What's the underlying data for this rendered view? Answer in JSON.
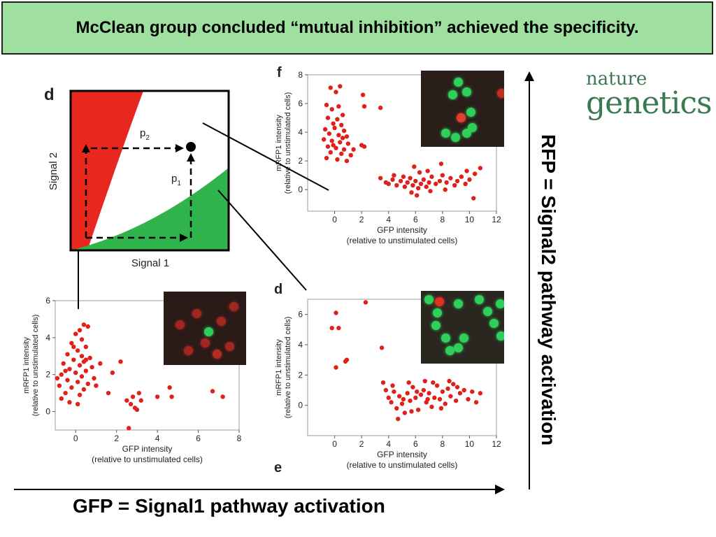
{
  "banner": {
    "title": "McClean group concluded “mutual inhibition” achieved the specificity."
  },
  "logo": {
    "line1": "nature",
    "line2": "genetics"
  },
  "axis_labels": {
    "bottom": "GFP = Signal1 pathway activation",
    "right": "RFP = Signal2 pathway activation"
  },
  "colors": {
    "banner": "#9fdf9f",
    "red_region": "#e8271e",
    "green_region": "#2fb34a",
    "dot": "#e0201a",
    "logo": "#3a7a52"
  },
  "schematic": {
    "panel_letter": "d",
    "xlabel": "Signal 1",
    "ylabel": "Signal 2",
    "p1_label": "p",
    "p1_sub": "1",
    "p2_label": "p",
    "p2_sub": "2"
  },
  "chart_data": [
    {
      "id": "top-right",
      "type": "scatter",
      "panel_letters": [
        "f"
      ],
      "xlabel": "GFP intensity",
      "xlabel2": "(relative to unstimulated cells)",
      "ylabel": "mRFP1 intensity",
      "ylabel2": "(relative to unstimulated cells)",
      "xlim": [
        -2,
        12
      ],
      "ylim": [
        -1.5,
        8
      ],
      "xticks": [
        0,
        2,
        4,
        6,
        8,
        10,
        12
      ],
      "yticks": [
        0,
        2,
        4,
        6,
        8
      ],
      "points": [
        [
          -0.3,
          7.1
        ],
        [
          0.1,
          6.8
        ],
        [
          0.4,
          7.2
        ],
        [
          -0.6,
          5.9
        ],
        [
          -0.2,
          5.6
        ],
        [
          0.3,
          5.8
        ],
        [
          0.6,
          5.2
        ],
        [
          -0.5,
          5.0
        ],
        [
          0.2,
          4.9
        ],
        [
          -0.1,
          4.6
        ],
        [
          0.5,
          4.5
        ],
        [
          -0.7,
          4.2
        ],
        [
          0.0,
          4.3
        ],
        [
          0.7,
          4.1
        ],
        [
          -0.4,
          3.9
        ],
        [
          0.3,
          3.8
        ],
        [
          0.9,
          3.7
        ],
        [
          -0.8,
          3.5
        ],
        [
          -0.2,
          3.4
        ],
        [
          0.4,
          3.3
        ],
        [
          1.0,
          3.2
        ],
        [
          -0.5,
          3.0
        ],
        [
          0.1,
          2.9
        ],
        [
          0.7,
          2.8
        ],
        [
          -0.3,
          2.6
        ],
        [
          0.5,
          2.5
        ],
        [
          1.2,
          2.4
        ],
        [
          -0.6,
          2.2
        ],
        [
          0.2,
          2.1
        ],
        [
          0.9,
          2.0
        ],
        [
          1.4,
          2.8
        ],
        [
          2.0,
          3.1
        ],
        [
          2.2,
          3.0
        ],
        [
          2.1,
          6.6
        ],
        [
          2.2,
          5.8
        ],
        [
          3.4,
          5.7
        ],
        [
          -0.1,
          3.1
        ],
        [
          0.6,
          3.6
        ],
        [
          3.4,
          0.8
        ],
        [
          3.8,
          0.5
        ],
        [
          4.0,
          0.4
        ],
        [
          4.3,
          0.7
        ],
        [
          4.6,
          0.3
        ],
        [
          4.9,
          0.6
        ],
        [
          5.2,
          0.2
        ],
        [
          5.4,
          0.5
        ],
        [
          5.6,
          0.8
        ],
        [
          5.8,
          0.3
        ],
        [
          6.0,
          0.6
        ],
        [
          6.2,
          0.1
        ],
        [
          6.4,
          0.4
        ],
        [
          6.6,
          0.7
        ],
        [
          6.8,
          0.2
        ],
        [
          7.0,
          0.5
        ],
        [
          7.2,
          0.9
        ],
        [
          7.5,
          0.4
        ],
        [
          7.8,
          0.6
        ],
        [
          8.0,
          1.0
        ],
        [
          8.3,
          0.5
        ],
        [
          8.6,
          0.8
        ],
        [
          8.9,
          0.3
        ],
        [
          9.1,
          0.6
        ],
        [
          9.4,
          0.9
        ],
        [
          9.7,
          0.4
        ],
        [
          10.0,
          0.7
        ],
        [
          10.4,
          1.1
        ],
        [
          10.8,
          1.5
        ],
        [
          10.3,
          -0.6
        ],
        [
          5.1,
          0.9
        ],
        [
          6.3,
          1.2
        ],
        [
          7.1,
          -0.1
        ],
        [
          5.7,
          -0.2
        ],
        [
          4.4,
          1.0
        ],
        [
          8.2,
          0.0
        ],
        [
          9.8,
          1.3
        ],
        [
          6.9,
          1.3
        ],
        [
          5.9,
          1.6
        ],
        [
          7.9,
          1.8
        ],
        [
          6.1,
          -0.4
        ]
      ]
    },
    {
      "id": "bottom-right",
      "type": "scatter",
      "panel_letters": [
        "d",
        "e"
      ],
      "xlabel": "GFP intensity",
      "xlabel2": "(relative to unstimulated cells)",
      "ylabel": "mRFP1 intensity",
      "ylabel2": "(relative to unstimulated cells)",
      "xlim": [
        -2,
        12
      ],
      "ylim": [
        -2,
        7
      ],
      "xticks": [
        0,
        2,
        4,
        6,
        8,
        10,
        12
      ],
      "yticks": [
        0,
        2,
        4,
        6
      ],
      "points": [
        [
          0.1,
          6.1
        ],
        [
          -0.2,
          5.1
        ],
        [
          0.3,
          5.1
        ],
        [
          2.3,
          6.8
        ],
        [
          0.9,
          3.0
        ],
        [
          0.8,
          2.9
        ],
        [
          0.1,
          2.5
        ],
        [
          3.5,
          3.8
        ],
        [
          3.6,
          1.5
        ],
        [
          3.8,
          1.0
        ],
        [
          4.0,
          0.5
        ],
        [
          4.2,
          0.2
        ],
        [
          4.4,
          0.9
        ],
        [
          4.6,
          -0.2
        ],
        [
          4.8,
          0.6
        ],
        [
          5.0,
          0.1
        ],
        [
          5.2,
          -0.5
        ],
        [
          5.4,
          0.8
        ],
        [
          5.6,
          0.3
        ],
        [
          5.8,
          1.2
        ],
        [
          6.0,
          0.5
        ],
        [
          6.2,
          -0.3
        ],
        [
          6.4,
          0.7
        ],
        [
          6.6,
          1.0
        ],
        [
          6.8,
          0.2
        ],
        [
          7.0,
          0.8
        ],
        [
          7.2,
          -0.1
        ],
        [
          7.4,
          0.5
        ],
        [
          7.6,
          1.3
        ],
        [
          7.8,
          0.4
        ],
        [
          8.0,
          0.9
        ],
        [
          8.2,
          0.1
        ],
        [
          8.4,
          1.1
        ],
        [
          8.6,
          0.6
        ],
        [
          8.8,
          1.4
        ],
        [
          9.0,
          0.3
        ],
        [
          9.3,
          0.8
        ],
        [
          9.6,
          1.0
        ],
        [
          9.9,
          0.4
        ],
        [
          10.2,
          0.9
        ],
        [
          10.5,
          0.2
        ],
        [
          10.8,
          0.8
        ],
        [
          4.7,
          -0.9
        ],
        [
          5.5,
          1.5
        ],
        [
          6.7,
          1.6
        ],
        [
          7.3,
          1.5
        ],
        [
          8.5,
          1.6
        ],
        [
          6.1,
          0.9
        ],
        [
          5.1,
          0.4
        ],
        [
          7.9,
          -0.2
        ],
        [
          6.9,
          0.4
        ],
        [
          9.1,
          1.2
        ],
        [
          4.3,
          1.3
        ],
        [
          5.7,
          -0.4
        ]
      ]
    },
    {
      "id": "bottom-left",
      "type": "scatter",
      "panel_letters": [],
      "xlabel": "GFP intensity",
      "xlabel2": "(relative to unstimulated cells)",
      "ylabel": "mRFP1 intensity",
      "ylabel2": "(relative to unstimulated cells)",
      "xlim": [
        -1,
        8
      ],
      "ylim": [
        -1,
        6
      ],
      "xticks": [
        0,
        2,
        4,
        6,
        8
      ],
      "yticks": [
        0,
        2,
        4,
        6
      ],
      "points": [
        [
          0.4,
          4.7
        ],
        [
          0.2,
          4.4
        ],
        [
          0.6,
          4.6
        ],
        [
          0.0,
          4.2
        ],
        [
          0.3,
          3.9
        ],
        [
          -0.2,
          3.7
        ],
        [
          0.5,
          3.5
        ],
        [
          0.1,
          3.3
        ],
        [
          -0.4,
          3.1
        ],
        [
          0.3,
          3.0
        ],
        [
          0.7,
          2.9
        ],
        [
          -0.1,
          2.8
        ],
        [
          0.4,
          2.7
        ],
        [
          -0.6,
          2.6
        ],
        [
          0.2,
          2.5
        ],
        [
          0.8,
          2.4
        ],
        [
          -0.3,
          2.3
        ],
        [
          0.5,
          2.2
        ],
        [
          0.0,
          2.1
        ],
        [
          -0.7,
          2.0
        ],
        [
          0.3,
          1.9
        ],
        [
          0.9,
          1.8
        ],
        [
          -0.4,
          1.7
        ],
        [
          0.1,
          1.6
        ],
        [
          0.6,
          1.5
        ],
        [
          -0.8,
          1.4
        ],
        [
          -0.2,
          1.3
        ],
        [
          0.4,
          1.2
        ],
        [
          -0.5,
          1.0
        ],
        [
          0.2,
          0.9
        ],
        [
          -0.7,
          0.7
        ],
        [
          -0.3,
          0.5
        ],
        [
          0.1,
          0.4
        ],
        [
          -0.9,
          1.8
        ],
        [
          1.0,
          1.4
        ],
        [
          1.6,
          1.0
        ],
        [
          1.8,
          2.1
        ],
        [
          2.2,
          2.7
        ],
        [
          2.5,
          0.6
        ],
        [
          2.7,
          0.4
        ],
        [
          2.8,
          0.8
        ],
        [
          2.9,
          0.2
        ],
        [
          3.1,
          1.0
        ],
        [
          3.2,
          0.6
        ],
        [
          3.0,
          0.1
        ],
        [
          2.6,
          -0.9
        ],
        [
          4.6,
          1.3
        ],
        [
          4.7,
          0.8
        ],
        [
          4.0,
          0.8
        ],
        [
          6.7,
          1.1
        ],
        [
          7.2,
          0.8
        ],
        [
          1.2,
          2.6
        ],
        [
          -0.1,
          3.5
        ],
        [
          0.5,
          2.8
        ],
        [
          -0.5,
          2.2
        ]
      ]
    }
  ],
  "micrographs": [
    {
      "id": "micro-top",
      "cells": [
        [
          45,
          15,
          "#2ecf5a"
        ],
        [
          55,
          28,
          "#2ecf5a"
        ],
        [
          38,
          32,
          "#2ecf5a"
        ],
        [
          60,
          55,
          "#2ecf5a"
        ],
        [
          48,
          62,
          "#e04030"
        ],
        [
          30,
          82,
          "#2ecf5a"
        ],
        [
          42,
          88,
          "#2ecf5a"
        ],
        [
          62,
          75,
          "#2ecf5a"
        ],
        [
          55,
          82,
          "#2ecf5a"
        ],
        [
          97,
          30,
          "#c03020"
        ]
      ]
    },
    {
      "id": "micro-bottom-left",
      "cells": [
        [
          20,
          45,
          "#a02820"
        ],
        [
          40,
          30,
          "#a02820"
        ],
        [
          55,
          55,
          "#2ecf5a"
        ],
        [
          70,
          40,
          "#a02820"
        ],
        [
          50,
          70,
          "#a02820"
        ],
        [
          80,
          75,
          "#a02820"
        ],
        [
          30,
          80,
          "#a02820"
        ],
        [
          85,
          20,
          "#a02820"
        ],
        [
          65,
          85,
          "#b03020"
        ]
      ]
    },
    {
      "id": "micro-bottom-right",
      "cells": [
        [
          10,
          12,
          "#2ecf5a"
        ],
        [
          20,
          30,
          "#2ecf5a"
        ],
        [
          18,
          48,
          "#2ecf5a"
        ],
        [
          22,
          15,
          "#e03020"
        ],
        [
          45,
          18,
          "#2ecf5a"
        ],
        [
          70,
          12,
          "#2ecf5a"
        ],
        [
          80,
          28,
          "#2ecf5a"
        ],
        [
          95,
          18,
          "#2ecf5a"
        ],
        [
          30,
          65,
          "#2ecf5a"
        ],
        [
          35,
          82,
          "#2ecf5a"
        ],
        [
          45,
          78,
          "#2ecf5a"
        ],
        [
          52,
          65,
          "#2ecf5a"
        ],
        [
          88,
          45,
          "#2ecf5a"
        ],
        [
          96,
          62,
          "#2ecf5a"
        ]
      ]
    }
  ]
}
